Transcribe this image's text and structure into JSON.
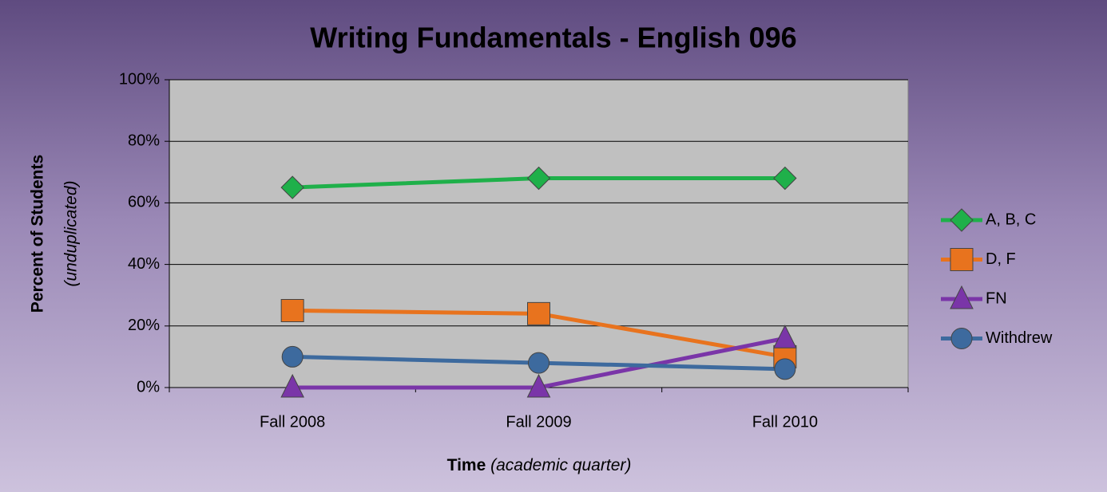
{
  "chart_data": {
    "type": "line",
    "title": "Writing Fundamentals - English 096",
    "y_label": "Percent of Students",
    "y_label_note": "(unduplicated)",
    "x_label": "Time",
    "x_label_note": "(academic quarter)",
    "categories": [
      "Fall 2008",
      "Fall 2009",
      "Fall 2010"
    ],
    "series": [
      {
        "name": "A, B, C",
        "color": "#1fb04a",
        "marker": "diamond",
        "values": [
          65,
          68,
          68
        ]
      },
      {
        "name": "D, F",
        "color": "#e8731e",
        "marker": "square",
        "values": [
          25,
          24,
          10
        ]
      },
      {
        "name": "FN",
        "color": "#7a35a8",
        "marker": "triangle",
        "values": [
          0,
          0,
          16
        ]
      },
      {
        "name": "Withdrew",
        "color": "#3d6a9e",
        "marker": "circle",
        "values": [
          10,
          8,
          6
        ]
      }
    ],
    "ylim": [
      0,
      100
    ],
    "yticks": [
      {
        "value": 0,
        "label": "0%"
      },
      {
        "value": 20,
        "label": "20%"
      },
      {
        "value": 40,
        "label": "40%"
      },
      {
        "value": 60,
        "label": "60%"
      },
      {
        "value": 80,
        "label": "80%"
      },
      {
        "value": 100,
        "label": "100%"
      }
    ],
    "grid": true,
    "legend": "right"
  }
}
